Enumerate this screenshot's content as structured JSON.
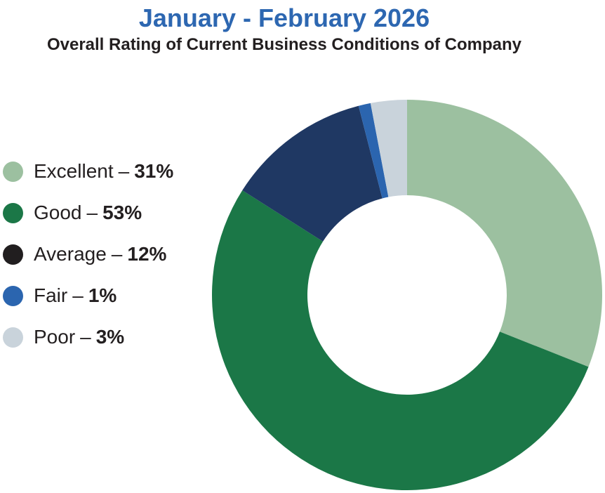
{
  "header": {
    "title": "January - February 2026",
    "subtitle": "Overall Rating of Current Business Conditions of Company"
  },
  "colors": {
    "title_text": "#2d67b1",
    "body_text": "#231f20",
    "background": "#ffffff",
    "donut_hole": "#ffffff"
  },
  "chart_data": {
    "type": "pie",
    "subtype": "donut",
    "title": "January - February 2026",
    "subtitle": "Overall Rating of Current Business Conditions of Company",
    "categories": [
      "Excellent",
      "Good",
      "Average",
      "Fair",
      "Poor"
    ],
    "values": [
      31,
      53,
      12,
      1,
      3
    ],
    "unit": "%",
    "start_angle_deg": -90,
    "direction": "clockwise",
    "slice_colors": [
      "#9cc0a0",
      "#1b7747",
      "#1f3863",
      "#2b65af",
      "#c9d3db"
    ],
    "legend_dot_colors": [
      "#9cc0a0",
      "#1b7747",
      "#211e1f",
      "#2b65af",
      "#c9d3db"
    ],
    "legend_position": "left",
    "separator": "–",
    "legend": [
      {
        "label": "Excellent",
        "value": "31%"
      },
      {
        "label": "Good",
        "value": "53%"
      },
      {
        "label": "Average",
        "value": "12%"
      },
      {
        "label": "Fair",
        "value": "1%"
      },
      {
        "label": "Poor",
        "value": "3%"
      }
    ]
  }
}
